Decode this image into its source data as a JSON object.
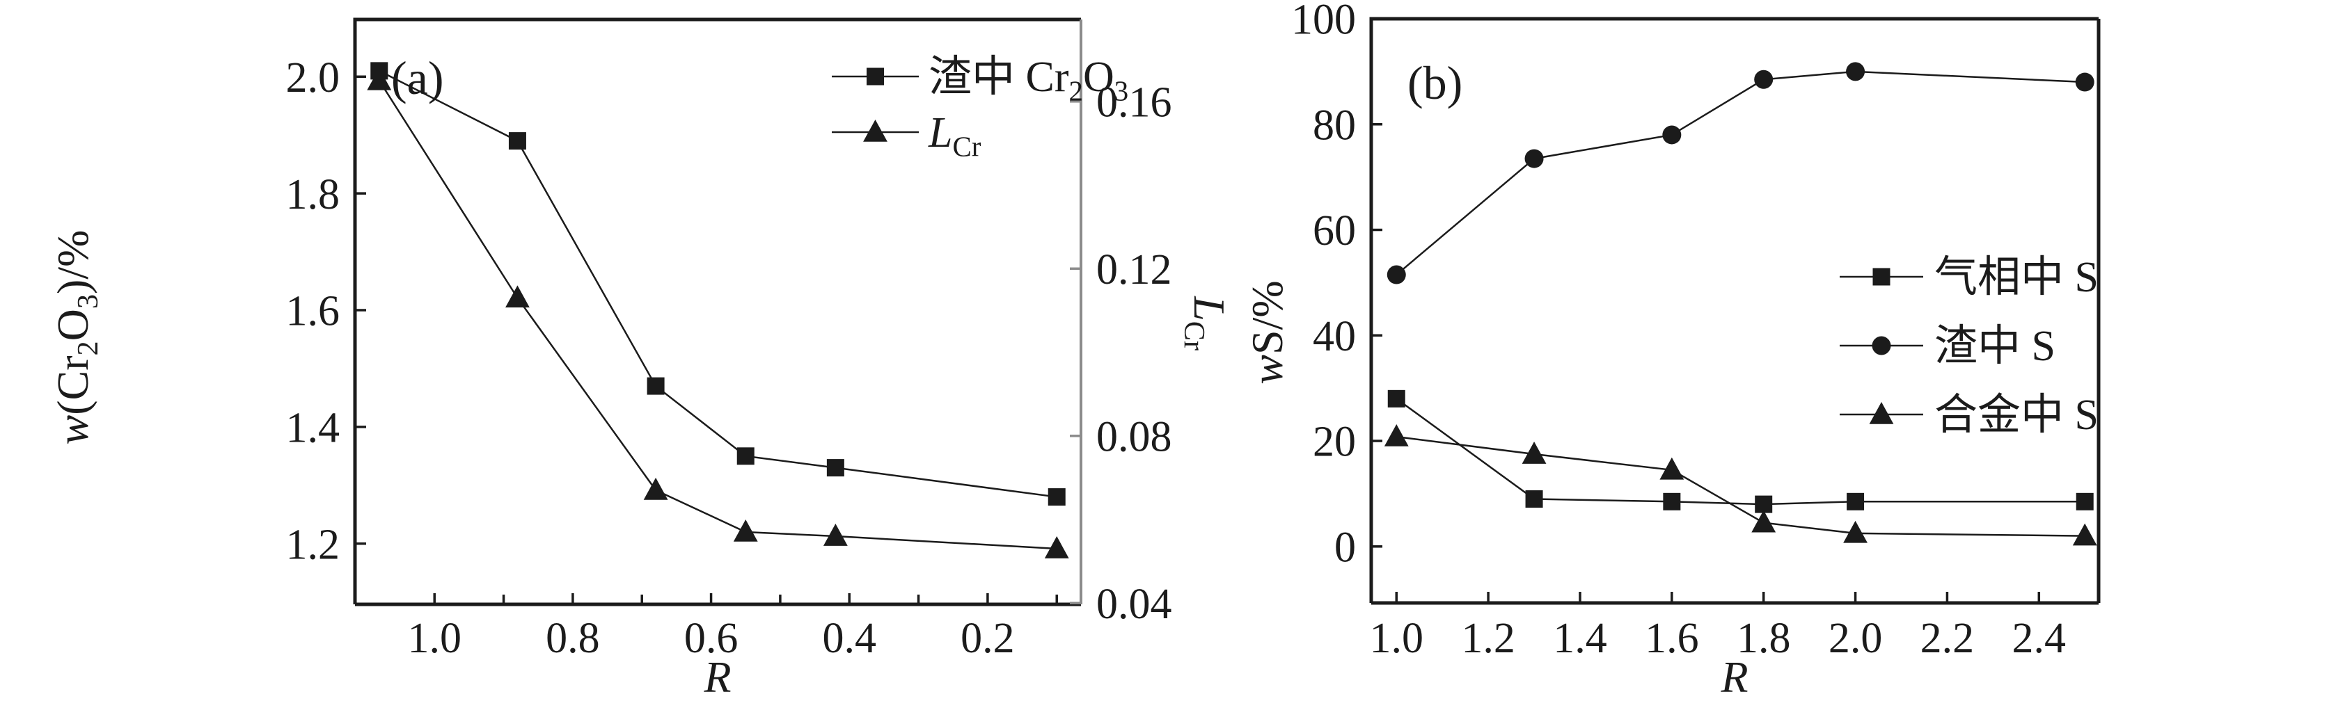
{
  "colors": {
    "ink": "#1b1b1b",
    "gray": "#8c8c8c",
    "background": "#ffffff"
  },
  "chart_data": [
    {
      "panel_label": "(a)",
      "type": "line",
      "x_axis": {
        "label": "R",
        "label_runs": [
          {
            "t": "R",
            "i": 1
          }
        ],
        "reversed": true,
        "xlim": [
          1.115,
          0.065
        ],
        "major_ticks": [
          {
            "v": 1.0,
            "label": "1.0"
          },
          {
            "v": 0.8,
            "label": "0.8"
          },
          {
            "v": 0.6,
            "label": "0.6"
          },
          {
            "v": 0.4,
            "label": "0.4"
          },
          {
            "v": 0.2,
            "label": "0.2"
          }
        ],
        "minor_ticks": [
          0.9,
          0.7,
          0.5,
          0.3,
          0.1
        ]
      },
      "left_axis": {
        "label": "w(Cr2O3)/%",
        "label_runs": [
          {
            "t": "w",
            "i": 1
          },
          {
            "t": "(Cr"
          },
          {
            "t": "2",
            "s": 1
          },
          {
            "t": "O"
          },
          {
            "t": "3",
            "s": 1
          },
          {
            "t": ")/%"
          }
        ],
        "ylim": [
          1.096,
          2.098
        ],
        "ticks": [
          {
            "v": 2.0,
            "label": "2.0"
          },
          {
            "v": 1.8,
            "label": "1.8"
          },
          {
            "v": 1.6,
            "label": "1.6"
          },
          {
            "v": 1.4,
            "label": "1.4"
          },
          {
            "v": 1.2,
            "label": "1.2"
          }
        ],
        "color": "ink"
      },
      "right_axis": {
        "label": "LCr",
        "label_runs": [
          {
            "t": "L",
            "i": 1
          },
          {
            "t": "Cr",
            "s": 1
          }
        ],
        "ylim": [
          0.0397,
          0.1796
        ],
        "ticks": [
          {
            "v": 0.16,
            "label": "0.16"
          },
          {
            "v": 0.12,
            "label": "0.12"
          },
          {
            "v": 0.08,
            "label": "0.08"
          },
          {
            "v": 0.04,
            "label": "0.04"
          }
        ],
        "color": "gray"
      },
      "series": [
        {
          "name": "渣中 Cr2O3",
          "name_runs": [
            {
              "t": "渣中 Cr"
            },
            {
              "t": "2",
              "s": 1
            },
            {
              "t": "O"
            },
            {
              "t": "3",
              "s": 1
            }
          ],
          "marker": "square",
          "axis": "left",
          "x": [
            1.08,
            0.88,
            0.68,
            0.55,
            0.42,
            0.1
          ],
          "y": [
            2.01,
            1.89,
            1.47,
            1.35,
            1.33,
            1.28
          ]
        },
        {
          "name": "LCr",
          "name_runs": [
            {
              "t": "L",
              "i": 1
            },
            {
              "t": "Cr",
              "s": 1
            }
          ],
          "marker": "triangle",
          "axis": "right",
          "x": [
            1.08,
            0.88,
            0.68,
            0.55,
            0.42,
            0.1
          ],
          "y": [
            0.165,
            0.113,
            0.067,
            0.057,
            0.056,
            0.053
          ]
        }
      ]
    },
    {
      "panel_label": "(b)",
      "type": "line",
      "x_axis": {
        "label": "R",
        "label_runs": [
          {
            "t": "R",
            "i": 1
          }
        ],
        "reversed": false,
        "xlim": [
          0.945,
          2.53
        ],
        "major_ticks": [
          {
            "v": 1.0,
            "label": "1.0"
          },
          {
            "v": 1.2,
            "label": "1.2"
          },
          {
            "v": 1.4,
            "label": "1.4"
          },
          {
            "v": 1.6,
            "label": "1.6"
          },
          {
            "v": 1.8,
            "label": "1.8"
          },
          {
            "v": 2.0,
            "label": "2.0"
          },
          {
            "v": 2.2,
            "label": "2.2"
          },
          {
            "v": 2.4,
            "label": "2.4"
          }
        ],
        "minor_ticks": []
      },
      "left_axis": {
        "label": "wS/%",
        "label_runs": [
          {
            "t": "w",
            "i": 1
          },
          {
            "t": "S/%"
          }
        ],
        "ylim": [
          -10.7,
          100
        ],
        "ticks": [
          {
            "v": 100,
            "label": "100"
          },
          {
            "v": 80,
            "label": "80"
          },
          {
            "v": 60,
            "label": "60"
          },
          {
            "v": 40,
            "label": "40"
          },
          {
            "v": 20,
            "label": "20"
          },
          {
            "v": 0,
            "label": "0"
          }
        ],
        "color": "ink"
      },
      "right_axis": null,
      "series": [
        {
          "name": "气相中 S",
          "name_runs": [
            {
              "t": "气相中 S"
            }
          ],
          "marker": "square",
          "axis": "left",
          "x": [
            1.0,
            1.3,
            1.6,
            1.8,
            2.0,
            2.5
          ],
          "y": [
            28,
            9,
            8.5,
            8,
            8.5,
            8.5
          ]
        },
        {
          "name": "渣中 S",
          "name_runs": [
            {
              "t": "渣中 S"
            }
          ],
          "marker": "circle",
          "axis": "left",
          "x": [
            1.0,
            1.3,
            1.6,
            1.8,
            2.0,
            2.5
          ],
          "y": [
            51.5,
            73.5,
            78,
            88.5,
            90,
            88
          ]
        },
        {
          "name": "合金中 S",
          "name_runs": [
            {
              "t": "合金中 S"
            }
          ],
          "marker": "triangle",
          "axis": "left",
          "x": [
            1.0,
            1.3,
            1.6,
            1.8,
            2.0,
            2.5
          ],
          "y": [
            20.8,
            17.5,
            14.5,
            4.5,
            2.5,
            2
          ]
        }
      ]
    }
  ]
}
